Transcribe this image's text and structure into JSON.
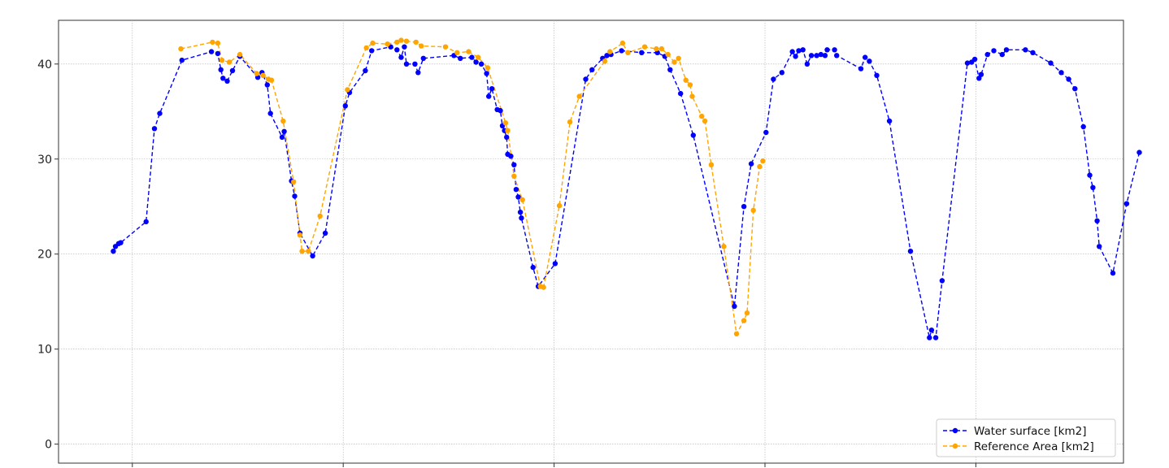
{
  "chart_data": {
    "type": "line",
    "grid": true,
    "legend_position": "bottom-right",
    "ylim": [
      -2,
      44.6
    ],
    "xlim": [
      -10,
      1000
    ],
    "y_ticks": [
      0,
      10,
      20,
      30,
      40
    ],
    "y_tick_labels": [
      "0",
      "10",
      "20",
      "30",
      "40"
    ],
    "x_ticks": [
      60,
      260,
      460,
      660,
      860,
      1060
    ],
    "series": [
      {
        "name": "Water surface [km2]",
        "color": "#0000ff",
        "points": [
          [
            42,
            20.3
          ],
          [
            44,
            20.8
          ],
          [
            47,
            21.1
          ],
          [
            49,
            21.2
          ],
          [
            73,
            23.4
          ],
          [
            81,
            33.2
          ],
          [
            86,
            34.8
          ],
          [
            107,
            40.4
          ],
          [
            135,
            41.3
          ],
          [
            141,
            41.1
          ],
          [
            144,
            39.4
          ],
          [
            146,
            38.5
          ],
          [
            150,
            38.2
          ],
          [
            155,
            39.3
          ],
          [
            162,
            40.8
          ],
          [
            179,
            38.6
          ],
          [
            183,
            39.1
          ],
          [
            188,
            37.8
          ],
          [
            191,
            34.8
          ],
          [
            202,
            32.3
          ],
          [
            204,
            32.9
          ],
          [
            211,
            27.7
          ],
          [
            214,
            26.1
          ],
          [
            219,
            22.2
          ],
          [
            231,
            19.8
          ],
          [
            243,
            22.2
          ],
          [
            262,
            35.6
          ],
          [
            266,
            37.0
          ],
          [
            281,
            39.3
          ],
          [
            287,
            41.4
          ],
          [
            305,
            41.8
          ],
          [
            311,
            41.5
          ],
          [
            315,
            40.7
          ],
          [
            318,
            41.8
          ],
          [
            320,
            40.0
          ],
          [
            328,
            40.0
          ],
          [
            331,
            39.1
          ],
          [
            336,
            40.6
          ],
          [
            365,
            40.9
          ],
          [
            371,
            40.6
          ],
          [
            382,
            40.7
          ],
          [
            386,
            40.2
          ],
          [
            391,
            40.0
          ],
          [
            396,
            39.0
          ],
          [
            398,
            36.6
          ],
          [
            401,
            37.4
          ],
          [
            406,
            35.2
          ],
          [
            409,
            35.1
          ],
          [
            411,
            33.5
          ],
          [
            413,
            33.0
          ],
          [
            415,
            32.3
          ],
          [
            416,
            30.5
          ],
          [
            419,
            30.3
          ],
          [
            422,
            29.4
          ],
          [
            424,
            26.8
          ],
          [
            426,
            26.0
          ],
          [
            428,
            24.4
          ],
          [
            429,
            23.8
          ],
          [
            440,
            18.6
          ],
          [
            445,
            16.6
          ],
          [
            461,
            19.0
          ],
          [
            490,
            38.4
          ],
          [
            496,
            39.4
          ],
          [
            506,
            40.6
          ],
          [
            510,
            40.9
          ],
          [
            514,
            41.0
          ],
          [
            524,
            41.4
          ],
          [
            543,
            41.2
          ],
          [
            558,
            41.2
          ],
          [
            565,
            40.8
          ],
          [
            570,
            39.4
          ],
          [
            580,
            36.9
          ],
          [
            592,
            32.5
          ],
          [
            631,
            14.5
          ],
          [
            640,
            25.0
          ],
          [
            647,
            29.5
          ],
          [
            661,
            32.8
          ],
          [
            668,
            38.4
          ],
          [
            676,
            39.1
          ],
          [
            686,
            41.3
          ],
          [
            689,
            40.8
          ],
          [
            692,
            41.4
          ],
          [
            696,
            41.5
          ],
          [
            700,
            40.0
          ],
          [
            704,
            40.9
          ],
          [
            709,
            40.9
          ],
          [
            713,
            41.0
          ],
          [
            717,
            40.9
          ],
          [
            719,
            41.5
          ],
          [
            726,
            41.5
          ],
          [
            728,
            40.9
          ],
          [
            751,
            39.5
          ],
          [
            755,
            40.7
          ],
          [
            759,
            40.3
          ],
          [
            766,
            38.8
          ],
          [
            778,
            34.0
          ],
          [
            798,
            20.3
          ],
          [
            816,
            11.2
          ],
          [
            818,
            12.0
          ],
          [
            822,
            11.2
          ],
          [
            828,
            17.2
          ],
          [
            852,
            40.1
          ],
          [
            856,
            40.2
          ],
          [
            859,
            40.5
          ],
          [
            863,
            38.5
          ],
          [
            865,
            38.9
          ],
          [
            871,
            41.0
          ],
          [
            877,
            41.4
          ],
          [
            885,
            41.0
          ],
          [
            889,
            41.5
          ],
          [
            907,
            41.5
          ],
          [
            914,
            41.2
          ],
          [
            931,
            40.1
          ],
          [
            941,
            39.1
          ],
          [
            948,
            38.4
          ],
          [
            954,
            37.4
          ],
          [
            962,
            33.4
          ],
          [
            968,
            28.3
          ],
          [
            971,
            27.0
          ],
          [
            975,
            23.5
          ],
          [
            977,
            20.8
          ],
          [
            990,
            18.0
          ],
          [
            1003,
            25.3
          ],
          [
            1015,
            30.7
          ]
        ]
      },
      {
        "name": "Reference Area [km2]",
        "color": "#ffa500",
        "points": [
          [
            106,
            41.6
          ],
          [
            136,
            42.3
          ],
          [
            141,
            42.2
          ],
          [
            145,
            40.4
          ],
          [
            152,
            40.2
          ],
          [
            162,
            41.0
          ],
          [
            178,
            39.0
          ],
          [
            184,
            38.8
          ],
          [
            189,
            38.4
          ],
          [
            192,
            38.3
          ],
          [
            203,
            34.0
          ],
          [
            213,
            27.6
          ],
          [
            219,
            22.0
          ],
          [
            221,
            20.3
          ],
          [
            227,
            20.3
          ],
          [
            238,
            24.0
          ],
          [
            264,
            37.3
          ],
          [
            282,
            41.7
          ],
          [
            288,
            42.2
          ],
          [
            302,
            42.1
          ],
          [
            311,
            42.3
          ],
          [
            315,
            42.5
          ],
          [
            320,
            42.4
          ],
          [
            329,
            42.3
          ],
          [
            334,
            41.9
          ],
          [
            357,
            41.8
          ],
          [
            368,
            41.2
          ],
          [
            379,
            41.3
          ],
          [
            388,
            40.7
          ],
          [
            397,
            39.6
          ],
          [
            414,
            33.8
          ],
          [
            416,
            33.0
          ],
          [
            422,
            28.2
          ],
          [
            430,
            25.7
          ],
          [
            447,
            16.6
          ],
          [
            450,
            16.5
          ],
          [
            465,
            25.1
          ],
          [
            475,
            33.9
          ],
          [
            484,
            36.6
          ],
          [
            508,
            40.3
          ],
          [
            513,
            41.3
          ],
          [
            525,
            42.2
          ],
          [
            530,
            41.2
          ],
          [
            546,
            41.8
          ],
          [
            557,
            41.6
          ],
          [
            562,
            41.6
          ],
          [
            568,
            41.0
          ],
          [
            574,
            40.2
          ],
          [
            578,
            40.6
          ],
          [
            585,
            38.3
          ],
          [
            589,
            37.8
          ],
          [
            591,
            36.6
          ],
          [
            600,
            34.5
          ],
          [
            603,
            34.0
          ],
          [
            609,
            29.4
          ],
          [
            621,
            20.8
          ],
          [
            633,
            11.6
          ],
          [
            640,
            13.0
          ],
          [
            643,
            13.8
          ],
          [
            649,
            24.6
          ],
          [
            655,
            29.2
          ],
          [
            658,
            29.8
          ]
        ]
      }
    ]
  }
}
